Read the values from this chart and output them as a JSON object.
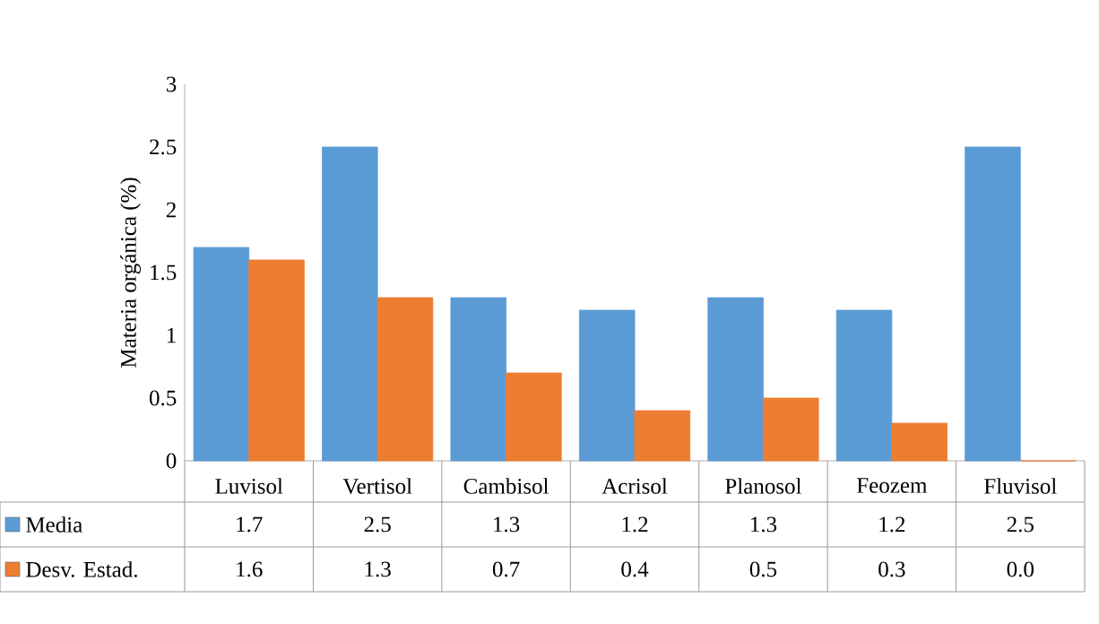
{
  "chart_data": {
    "type": "bar",
    "ylabel": "Materia orgánica (%)",
    "categories": [
      "Luvisol",
      "Vertisol",
      "Cambisol",
      "Acrisol",
      "Planosol",
      "Feozem",
      "Fluvisol"
    ],
    "series": [
      {
        "name": "Media",
        "color": "#5b9bd5",
        "values": [
          1.7,
          2.5,
          1.3,
          1.2,
          1.3,
          1.2,
          2.5
        ],
        "value_labels": [
          "1.7",
          "2.5",
          "1.3",
          "1.2",
          "1.3",
          "1.2",
          "2.5"
        ]
      },
      {
        "name": "Desv. Estad.",
        "color": "#ed7d31",
        "values": [
          1.6,
          1.3,
          0.7,
          0.4,
          0.5,
          0.3,
          0.0
        ],
        "value_labels": [
          "1.6",
          "1.3",
          "0.7",
          "0.4",
          "0.5",
          "0.3",
          "0.0"
        ]
      }
    ],
    "ylim": [
      0,
      3
    ],
    "yticks": [
      0,
      0.5,
      1,
      1.5,
      2,
      2.5,
      3
    ],
    "grid": false,
    "legend": "bottom left"
  }
}
